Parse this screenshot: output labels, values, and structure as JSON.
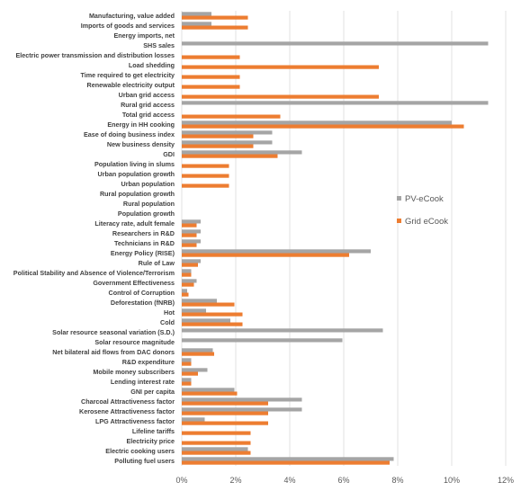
{
  "chart_data": {
    "type": "bar",
    "orientation": "horizontal",
    "title": "",
    "xlabel": "",
    "ylabel": "",
    "xlim": [
      0,
      12
    ],
    "x_ticks": [
      "0%",
      "2%",
      "4%",
      "6%",
      "8%",
      "10%",
      "12%"
    ],
    "x_tick_values": [
      0,
      2,
      4,
      6,
      8,
      10,
      12
    ],
    "grid": "vertical",
    "legend_position": "right",
    "categories": [
      "Manufacturing, value added",
      "Imports of goods and services",
      "Energy imports, net",
      "SHS sales",
      "Electric power transmission and distribution losses",
      "Load shedding",
      "Time required to get electricity",
      "Renewable electricity output",
      "Urban grid access",
      "Rural grid access",
      "Total grid access",
      "Energy in HH cooking",
      "Ease of doing business index",
      "New business density",
      "GDI",
      "Population living in slums",
      "Urban population growth",
      "Urban population",
      "Rural population growth",
      "Rural population",
      "Population growth",
      "Literacy rate, adult female",
      "Researchers in R&D",
      "Technicians in R&D",
      "Energy Policy (RISE)",
      "Rule of Law",
      "Political Stability and Absence of Violence/Terrorism",
      "Government Effectiveness",
      "Control of Corruption",
      "Deforestation (fNRB)",
      "Hot",
      "Cold",
      "Solar resource seasonal variation (S.D.)",
      "Solar resource magnitude",
      "Net bilateral aid flows from DAC donors",
      "R&D expenditure",
      "Mobile money subscribers",
      "Lending interest rate",
      "GNI per capita",
      "Charcoal Attractiveness factor",
      "Kerosene Attractiveness factor",
      "LPG Attractiveness factor",
      "Lifeline tariffs",
      "Electricity price",
      "Electric cooking users",
      "Polluting fuel users"
    ],
    "series": [
      {
        "name": "PV-eCook",
        "color": "#a5a5a5",
        "values": [
          1.1,
          1.1,
          0,
          11.35,
          0,
          0,
          0,
          0,
          0,
          11.35,
          0,
          10.0,
          3.35,
          3.35,
          4.45,
          0,
          0,
          0,
          0,
          0,
          0,
          0.7,
          0.7,
          0.7,
          7.0,
          0.7,
          0.35,
          0.55,
          0.2,
          1.3,
          0.9,
          1.8,
          7.45,
          5.95,
          1.15,
          0.35,
          0.95,
          0.35,
          1.95,
          4.45,
          4.45,
          0.85,
          0,
          0,
          2.45,
          7.85
        ]
      },
      {
        "name": "Grid eCook",
        "color": "#ed7d31",
        "values": [
          2.45,
          2.45,
          0,
          0,
          2.15,
          7.3,
          2.15,
          2.15,
          7.3,
          0,
          3.65,
          10.45,
          2.65,
          2.65,
          3.55,
          1.75,
          1.75,
          1.75,
          0,
          0,
          0,
          0.55,
          0.55,
          0.55,
          6.2,
          0.6,
          0.35,
          0.45,
          0.25,
          1.95,
          2.25,
          2.25,
          0,
          0,
          1.2,
          0.35,
          0.6,
          0.35,
          2.05,
          3.2,
          3.2,
          3.2,
          2.55,
          2.55,
          2.55,
          7.7
        ]
      }
    ]
  }
}
